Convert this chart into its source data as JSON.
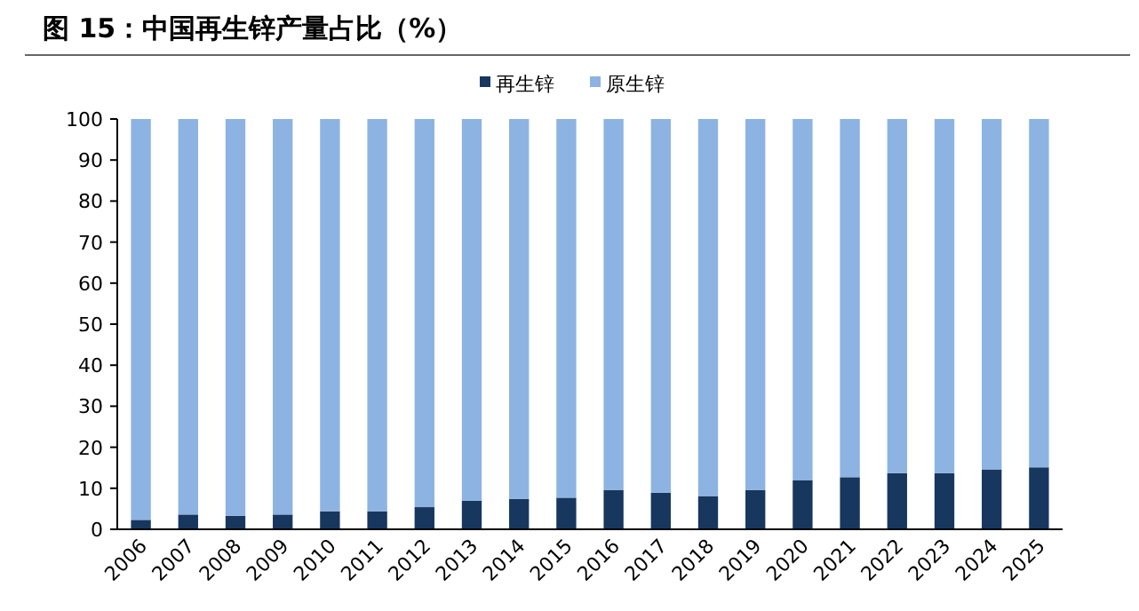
{
  "chart_data": {
    "type": "bar",
    "title": "图 15：中国再生锌产量占比（%）",
    "categories": [
      "2006",
      "2007",
      "2008",
      "2009",
      "2010",
      "2011",
      "2012",
      "2013",
      "2014",
      "2015",
      "2016",
      "2017",
      "2018",
      "2019",
      "2020",
      "2021",
      "2022",
      "2023",
      "2024",
      "2025"
    ],
    "stacked": true,
    "series": [
      {
        "name": "再生锌",
        "color": "#17375e",
        "values": [
          2.3,
          3.6,
          3.3,
          3.6,
          4.4,
          4.4,
          5.4,
          7.0,
          7.4,
          7.7,
          9.6,
          8.9,
          8.1,
          9.6,
          12.0,
          12.7,
          13.7,
          13.7,
          14.6,
          15.1
        ]
      },
      {
        "name": "原生锌",
        "color": "#8db3e2",
        "values": [
          97.7,
          96.4,
          96.7,
          96.4,
          95.6,
          95.6,
          94.6,
          93.0,
          92.6,
          92.3,
          90.4,
          91.1,
          91.9,
          90.4,
          88.0,
          87.3,
          86.3,
          86.3,
          85.4,
          84.9
        ]
      }
    ],
    "ylim": [
      0,
      100
    ],
    "yticks": [
      0,
      10,
      20,
      30,
      40,
      50,
      60,
      70,
      80,
      90,
      100
    ],
    "legend": "top"
  }
}
